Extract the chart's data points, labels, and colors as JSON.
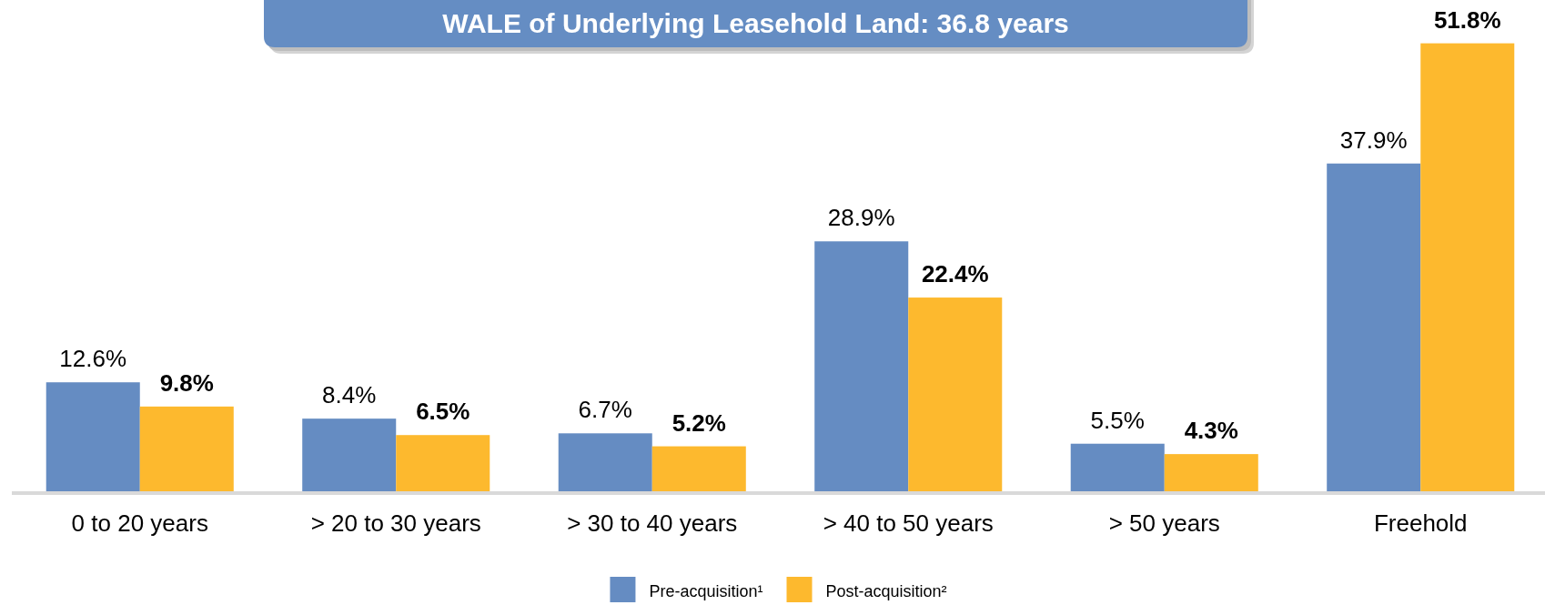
{
  "chart_data": {
    "type": "bar",
    "title": "WALE of Underlying Leasehold Land: 36.8 years",
    "categories": [
      "0 to 20 years",
      "> 20 to 30 years",
      "> 30 to 40 years",
      "> 40 to 50 years",
      "> 50 years",
      "Freehold"
    ],
    "series": [
      {
        "name": "Pre-acquisition¹",
        "color": "#658cc2",
        "values": [
          12.6,
          8.4,
          6.7,
          28.9,
          5.5,
          37.9
        ],
        "value_labels": [
          "12.6%",
          "8.4%",
          "6.7%",
          "28.9%",
          "5.5%",
          "37.9%"
        ]
      },
      {
        "name": "Post-acquisition²",
        "color": "#fdb92e",
        "values": [
          9.8,
          6.5,
          5.2,
          22.4,
          4.3,
          51.8
        ],
        "value_labels": [
          "9.8%",
          "6.5%",
          "5.2%",
          "22.4%",
          "4.3%",
          "51.8%"
        ]
      }
    ],
    "tick_labels": "x",
    "legend": "bottom"
  }
}
